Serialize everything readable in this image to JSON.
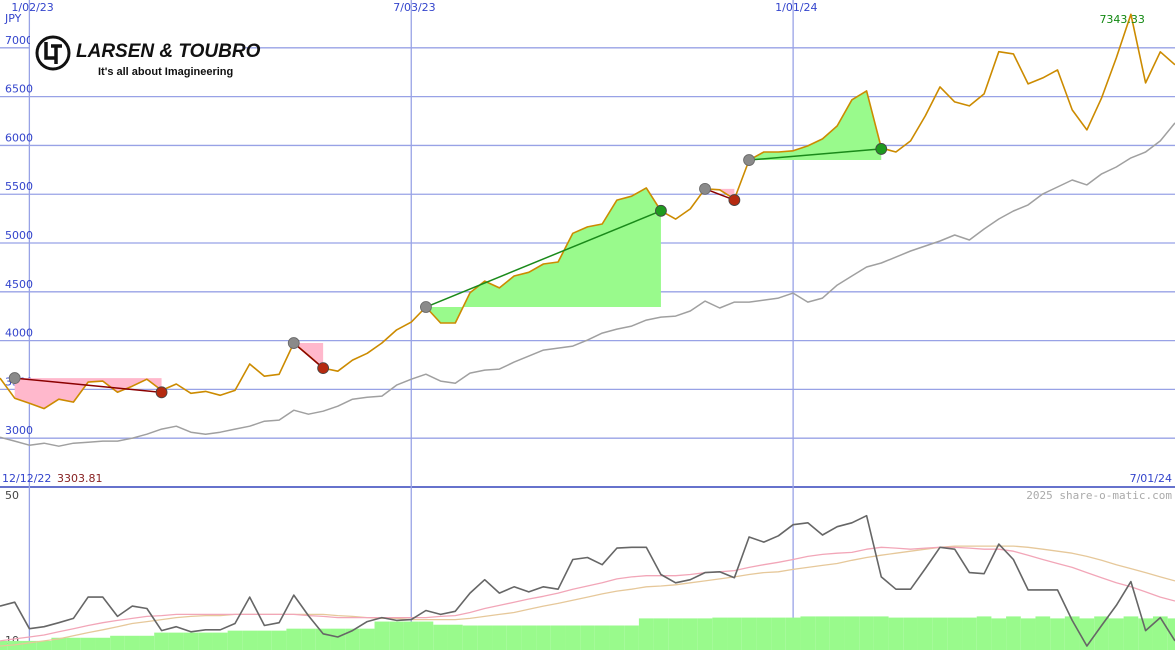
{
  "logo": {
    "name": "LARSEN & TOUBRO",
    "tagline": "It's all about Imagineering"
  },
  "watermark": "2025 share-o-matic.com",
  "chart_data": [
    {
      "type": "line",
      "unit": "JPY",
      "categories": [
        null,
        null,
        "1/02/23",
        null,
        null,
        null,
        null,
        null,
        null,
        null,
        null,
        null,
        null,
        null,
        null,
        null,
        null,
        null,
        null,
        null,
        null,
        null,
        null,
        null,
        null,
        null,
        null,
        null,
        "7/03/23",
        null,
        null,
        null,
        null,
        null,
        null,
        null,
        null,
        null,
        null,
        null,
        null,
        null,
        null,
        null,
        null,
        null,
        null,
        null,
        null,
        null,
        null,
        null,
        null,
        null,
        "1/01/24",
        null,
        null,
        null,
        null,
        null,
        null,
        null,
        null,
        null,
        null,
        null,
        null,
        null,
        null,
        null,
        null,
        null,
        null,
        null,
        null,
        null,
        null,
        null,
        null,
        null,
        null
      ],
      "start_label": "12/12/22",
      "end_label": "7/01/24",
      "ylim": [
        2500,
        7490
      ],
      "yticks": [
        3000,
        3500,
        4000,
        4500,
        5000,
        5500,
        6000,
        6500,
        7000
      ],
      "grid": true,
      "grid_color": "#98a2e6",
      "tick_color": "#3344cc",
      "max_color": "#118811",
      "min_color": "#882222",
      "series": [
        {
          "color": "#cc8b00",
          "values": [
            3616,
            3410,
            3359,
            3303.81,
            3400,
            3370,
            3575,
            3585,
            3470,
            3533,
            3605,
            3490,
            3555,
            3460,
            3480,
            3440,
            3490,
            3760,
            3635,
            3655,
            3975,
            3850,
            3718,
            3687,
            3800,
            3870,
            3975,
            4110,
            4190,
            4344,
            4180,
            4180,
            4490,
            4610,
            4540,
            4662,
            4700,
            4785,
            4805,
            5100,
            5165,
            5195,
            5440,
            5480,
            5565,
            5330,
            5245,
            5350,
            5555,
            5545,
            5450,
            5850,
            5933,
            5933,
            5945,
            5995,
            6067,
            6200,
            6467,
            6559,
            5974,
            5933,
            6046,
            6302,
            6600,
            6446,
            6405,
            6528,
            6960,
            6938,
            6630,
            6692,
            6774,
            6364,
            6159,
            6487,
            6897,
            7343.33,
            6641,
            6959,
            6826
          ]
        },
        {
          "color": "#a0a0a0",
          "values": [
            3010,
            2970,
            2928,
            2949,
            2918,
            2949,
            2959,
            2970,
            2970,
            3000,
            3041,
            3093,
            3123,
            3062,
            3041,
            3062,
            3093,
            3123,
            3174,
            3185,
            3287,
            3246,
            3277,
            3328,
            3400,
            3420,
            3431,
            3544,
            3605,
            3656,
            3585,
            3564,
            3667,
            3698,
            3708,
            3780,
            3841,
            3903,
            3923,
            3944,
            4005,
            4077,
            4118,
            4149,
            4210,
            4241,
            4251,
            4303,
            4405,
            4334,
            4395,
            4395,
            4415,
            4436,
            4487,
            4395,
            4436,
            4569,
            4662,
            4754,
            4795,
            4856,
            4918,
            4969,
            5021,
            5082,
            5031,
            5144,
            5246,
            5328,
            5390,
            5503,
            5574,
            5646,
            5595,
            5708,
            5779,
            5872,
            5933,
            6046,
            6231
          ]
        }
      ],
      "signals": {
        "entry_color": "#8a8a8a",
        "win_color": "#1f9a1f",
        "loss_color": "#b52a10",
        "win_line": "#1a8a1a",
        "loss_line": "#8b0000",
        "win_fill": "#99fa8c",
        "loss_fill": "#ffb8cc",
        "entry": [
          null,
          3616,
          null,
          null,
          null,
          null,
          null,
          null,
          null,
          null,
          null,
          null,
          null,
          null,
          null,
          null,
          null,
          null,
          null,
          null,
          3975,
          null,
          null,
          null,
          null,
          null,
          null,
          null,
          null,
          4344,
          null,
          null,
          null,
          null,
          null,
          null,
          null,
          null,
          null,
          null,
          null,
          null,
          null,
          null,
          null,
          null,
          null,
          null,
          5555,
          null,
          null,
          5850,
          null,
          null,
          null,
          null,
          null,
          null,
          null,
          null,
          null,
          null,
          null,
          null,
          null,
          null,
          null,
          null,
          null,
          null,
          null,
          null,
          null,
          null,
          null,
          null,
          null,
          null,
          null,
          null,
          null
        ],
        "exit": [
          null,
          null,
          null,
          null,
          null,
          null,
          null,
          null,
          null,
          null,
          null,
          3470,
          null,
          null,
          null,
          null,
          null,
          null,
          null,
          null,
          null,
          null,
          3718,
          null,
          null,
          null,
          null,
          null,
          null,
          null,
          null,
          null,
          null,
          null,
          null,
          null,
          null,
          null,
          null,
          null,
          null,
          null,
          null,
          null,
          null,
          5330,
          null,
          null,
          null,
          null,
          5440,
          null,
          null,
          null,
          null,
          null,
          null,
          null,
          null,
          null,
          5964,
          null,
          null,
          null,
          null,
          null,
          null,
          null,
          null,
          null,
          null,
          null,
          null,
          null,
          null,
          null,
          null,
          null,
          null,
          null,
          null
        ]
      }
    },
    {
      "type": "line",
      "ylim": [
        9,
        50
      ],
      "yticks": [
        10,
        50
      ],
      "bars": {
        "color": "#99fa8c",
        "values": [
          11.3,
          11.3,
          11.3,
          11.3,
          12.1,
          12.1,
          12.1,
          12.1,
          12.6,
          12.6,
          12.6,
          13.4,
          13.4,
          13.4,
          13.4,
          13.4,
          13.9,
          13.9,
          13.9,
          13.9,
          14.4,
          14.4,
          14.4,
          14.4,
          14.4,
          14.4,
          16.2,
          16.2,
          16.2,
          16.2,
          15.4,
          15.4,
          15.2,
          15.2,
          15.2,
          15.2,
          15.2,
          15.2,
          15.2,
          15.2,
          15.2,
          15.2,
          15.2,
          15.2,
          17.0,
          17.0,
          17.0,
          17.0,
          17.0,
          17.2,
          17.2,
          17.2,
          17.2,
          17.2,
          17.2,
          17.5,
          17.5,
          17.5,
          17.5,
          17.5,
          17.5,
          17.2,
          17.2,
          17.2,
          17.2,
          17.2,
          17.2,
          17.5,
          17.0,
          17.5,
          17.0,
          17.5,
          17.0,
          17.5,
          17.0,
          17.5,
          17.0,
          17.5,
          17.0,
          17.5,
          17.0
        ]
      },
      "series": [
        {
          "color": "#e6c89a",
          "values": [
            10.0,
            10.3,
            10.8,
            11.3,
            11.8,
            12.6,
            13.4,
            14.1,
            14.9,
            15.7,
            16.2,
            16.7,
            17.2,
            17.5,
            17.7,
            17.7,
            18.0,
            18.0,
            18.0,
            18.0,
            18.0,
            18.0,
            18.0,
            17.7,
            17.5,
            17.2,
            17.0,
            17.0,
            16.7,
            16.7,
            16.7,
            16.7,
            17.0,
            17.5,
            18.0,
            18.5,
            19.3,
            20.1,
            20.8,
            21.6,
            22.4,
            23.2,
            23.9,
            24.4,
            25.0,
            25.2,
            25.5,
            26.0,
            26.5,
            27.0,
            27.5,
            28.1,
            28.6,
            28.8,
            29.4,
            29.9,
            30.4,
            30.9,
            31.7,
            32.4,
            33.0,
            33.5,
            34.0,
            34.5,
            35.0,
            35.3,
            35.3,
            35.3,
            35.3,
            35.3,
            35.0,
            34.5,
            34.0,
            33.5,
            32.7,
            31.7,
            30.6,
            29.6,
            28.6,
            27.5,
            26.5
          ]
        },
        {
          "color": "#f2a6b8",
          "values": [
            11.3,
            11.8,
            12.3,
            12.8,
            13.6,
            14.4,
            15.2,
            15.9,
            16.5,
            17.0,
            17.5,
            17.7,
            18.0,
            18.0,
            18.0,
            18.0,
            18.0,
            18.0,
            18.0,
            18.0,
            18.0,
            17.7,
            17.5,
            17.2,
            17.2,
            17.2,
            17.2,
            17.2,
            17.2,
            17.2,
            17.5,
            17.7,
            18.5,
            19.5,
            20.3,
            21.1,
            21.9,
            22.6,
            23.4,
            24.4,
            25.2,
            26.0,
            27.0,
            27.5,
            27.8,
            27.8,
            27.8,
            28.1,
            28.6,
            28.8,
            29.1,
            29.9,
            30.6,
            31.2,
            31.9,
            32.7,
            33.2,
            33.5,
            33.7,
            34.5,
            35.0,
            34.8,
            34.5,
            34.8,
            35.0,
            35.0,
            34.8,
            34.5,
            34.5,
            34.0,
            33.0,
            31.9,
            30.9,
            29.9,
            28.6,
            27.3,
            26.0,
            25.0,
            23.7,
            22.4,
            21.4
          ]
        },
        {
          "color": "#666666",
          "values": [
            20.1,
            21.1,
            14.4,
            14.9,
            15.9,
            17.0,
            22.4,
            22.4,
            17.5,
            20.1,
            19.5,
            13.9,
            14.9,
            13.6,
            14.1,
            14.1,
            15.7,
            22.4,
            15.2,
            15.9,
            22.9,
            17.7,
            13.1,
            12.3,
            13.9,
            16.2,
            17.2,
            16.5,
            16.7,
            19.0,
            18.0,
            18.8,
            23.4,
            26.8,
            23.4,
            25.0,
            23.7,
            25.0,
            24.4,
            31.9,
            32.4,
            30.6,
            34.8,
            35.0,
            35.0,
            28.1,
            26.0,
            26.8,
            28.6,
            28.8,
            27.3,
            37.6,
            36.3,
            37.9,
            40.7,
            41.2,
            38.1,
            40.2,
            41.2,
            43.0,
            27.5,
            24.4,
            24.4,
            29.6,
            35.0,
            34.5,
            28.6,
            28.3,
            35.8,
            31.9,
            24.2,
            24.2,
            24.2,
            16.5,
            10.0,
            15.2,
            20.3,
            26.3,
            13.9,
            17.2,
            11.3
          ]
        }
      ]
    }
  ]
}
